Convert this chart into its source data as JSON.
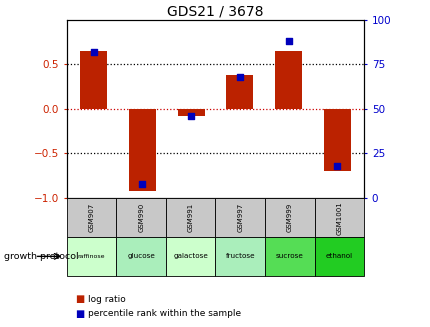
{
  "title": "GDS21 / 3678",
  "samples": [
    "GSM907",
    "GSM990",
    "GSM991",
    "GSM997",
    "GSM999",
    "GSM1001"
  ],
  "protocols": [
    "raffinose",
    "glucose",
    "galactose",
    "fructose",
    "sucrose",
    "ethanol"
  ],
  "log_ratios": [
    0.65,
    -0.92,
    -0.08,
    0.38,
    0.65,
    -0.7
  ],
  "percentile_ranks": [
    82,
    8,
    46,
    68,
    88,
    18
  ],
  "bar_color": "#bb2200",
  "dot_color": "#0000bb",
  "protocol_colors": [
    "#ccffcc",
    "#aaeebb",
    "#ccffcc",
    "#aaeebb",
    "#55dd55",
    "#22cc22"
  ],
  "left_ylim": [
    -1.0,
    1.0
  ],
  "right_ylim": [
    0,
    100
  ],
  "left_yticks": [
    -1,
    -0.5,
    0,
    0.5
  ],
  "right_yticks": [
    0,
    25,
    50,
    75,
    100
  ],
  "title_fontsize": 10,
  "legend_red_label": "log ratio",
  "legend_blue_label": "percentile rank within the sample",
  "gsm_bg": "#c8c8c8",
  "bar_width": 0.55
}
